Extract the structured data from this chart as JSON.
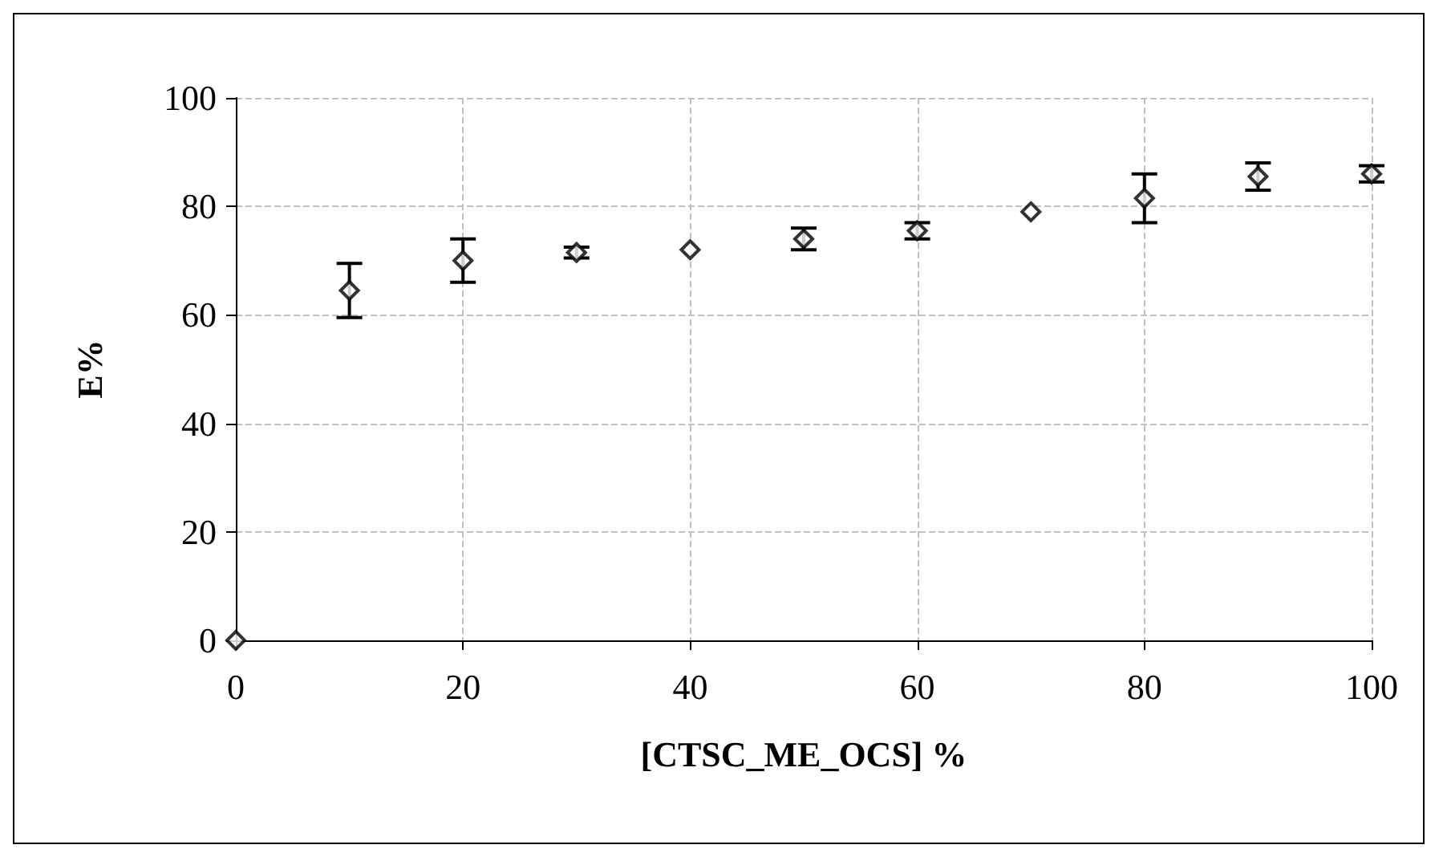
{
  "chart_data": {
    "type": "scatter",
    "xlabel": "[CTSC_ME_OCS] %",
    "ylabel": "E%",
    "x": [
      0,
      10,
      20,
      30,
      40,
      50,
      60,
      70,
      80,
      90,
      100
    ],
    "values": [
      0,
      64.5,
      70,
      71.5,
      72,
      74,
      75.5,
      79,
      81.5,
      85.5,
      86
    ],
    "errors": [
      null,
      5,
      4,
      1,
      null,
      2,
      1.5,
      null,
      4.5,
      2.5,
      1.5
    ],
    "color": "#000000",
    "marker": "diamond",
    "xlim": [
      0,
      100
    ],
    "xticks": [
      0,
      20,
      40,
      60,
      80,
      100
    ],
    "ylim": [
      0,
      100
    ],
    "yticks": [
      0,
      20,
      40,
      60,
      80,
      100
    ],
    "grid": true
  }
}
